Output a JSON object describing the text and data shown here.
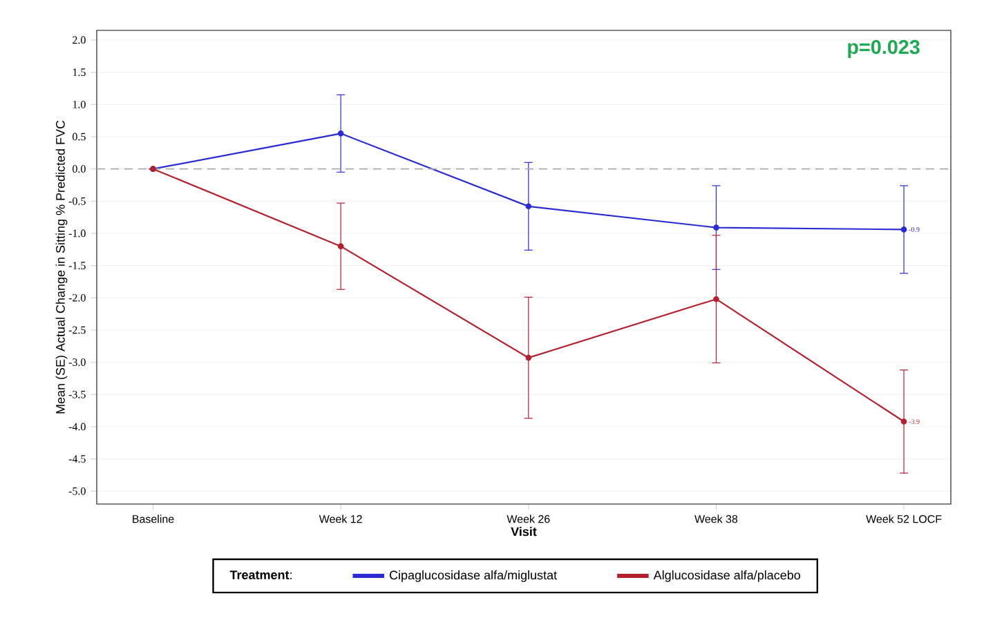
{
  "chart_data": {
    "type": "line",
    "xlabel": "Visit",
    "ylabel": "Mean (SE) Actual Change in Sitting % Predicted FVC",
    "legend_title": "**Treatment**:",
    "annotations": [
      "p=0.023"
    ],
    "categories": [
      "Baseline",
      "Week 12",
      "Week 26",
      "Week 38",
      "Week 52 LOCF"
    ],
    "ylim": [
      -5.2,
      2.15
    ],
    "yticks": [
      {
        "value": -5,
        "label": "-5.0"
      },
      -4.5,
      {
        "value": -4,
        "label": "-4.0"
      },
      -3.5,
      {
        "value": -3,
        "label": "-3.0"
      },
      -2.5,
      {
        "value": -2,
        "label": "-2.0"
      },
      -1.5,
      {
        "value": -1,
        "label": "-1.0"
      },
      -0.5,
      {
        "value": 0,
        "label": "0.0"
      },
      0.5,
      {
        "value": 1,
        "label": "1.0"
      },
      1.5,
      {
        "value": 2,
        "label": "2.0"
      }
    ],
    "series": [
      {
        "name": "Cipaglucosidase alfa/miglustat",
        "color": "#2b2bd6",
        "values": [
          0,
          0.55,
          -0.58,
          -0.91,
          -0.94
        ],
        "errors": [
          null,
          0.6,
          0.68,
          0.65,
          0.68
        ],
        "value_labels": [
          null,
          null,
          null,
          null,
          "-0.9"
        ]
      },
      {
        "name": "Alglucosidase alfa/placebo",
        "color": "#b5202e",
        "values": [
          0,
          -1.2,
          -2.93,
          -2.02,
          -3.92
        ],
        "errors": [
          null,
          0.67,
          0.94,
          0.99,
          0.8
        ],
        "value_labels": [
          null,
          null,
          null,
          null,
          "-3.9"
        ]
      }
    ],
    "ref_lines": [
      {
        "axis": "y",
        "value": 0,
        "color": "#aaaaaa",
        "line_style": "dashed"
      }
    ],
    "grid": "y",
    "legend": "bottom",
    "marker": "circle",
    "line_style": "solid"
  }
}
